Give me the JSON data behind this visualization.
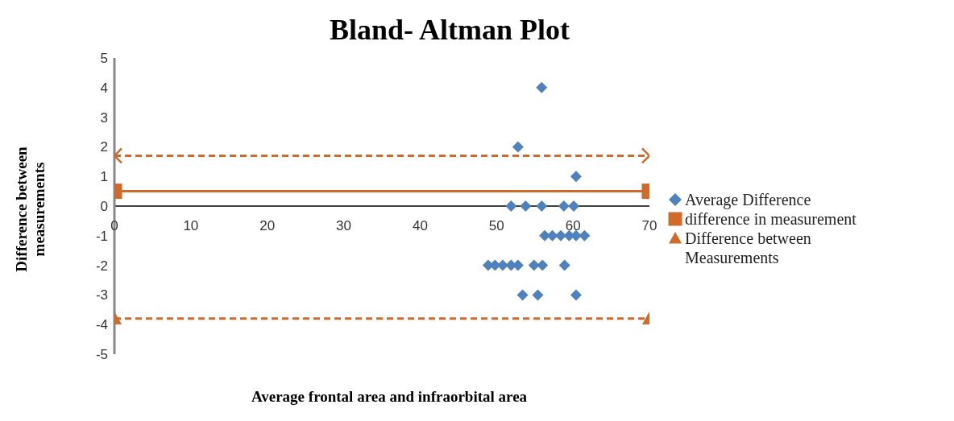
{
  "chart_data": {
    "type": "scatter",
    "title": "Bland- Altman Plot",
    "xlabel": "Average frontal area and infraorbital area",
    "ylabel": "Difference between measurements",
    "xlim": [
      0,
      70
    ],
    "xticks": [
      0,
      10,
      20,
      30,
      40,
      50,
      60,
      70
    ],
    "ylim": [
      -5,
      5
    ],
    "yticks": [
      -5,
      -4,
      -3,
      -2,
      -1,
      0,
      1,
      2,
      3,
      4,
      5
    ],
    "legend": "right",
    "series": [
      {
        "name": "Average Difference",
        "marker": "diamond",
        "color": "#4f81bd",
        "x": [
          55.9,
          52.8,
          60.4,
          51.9,
          53.8,
          55.9,
          58.8,
          60.1,
          56.3,
          57.3,
          58.4,
          59.5,
          60.4,
          61.5,
          48.9,
          49.8,
          50.8,
          51.9,
          52.8,
          54.9,
          56.0,
          58.9,
          53.4,
          55.4,
          60.4
        ],
        "values": [
          4,
          2,
          1,
          0,
          0,
          0,
          0,
          0,
          -1,
          -1,
          -1,
          -1,
          -1,
          -1,
          -2,
          -2,
          -2,
          -2,
          -2,
          -2,
          -2,
          -2,
          -3,
          -3,
          -3
        ]
      },
      {
        "type": "line",
        "marker": "cross",
        "line_style": "dashed",
        "color": "#d06a2a",
        "x": [
          0,
          70
        ],
        "values": [
          1.7,
          1.7
        ]
      },
      {
        "name": "difference in measurement",
        "type": "line",
        "marker": "square",
        "line_style": "solid",
        "color": "#d06a2a",
        "x": [
          0,
          70
        ],
        "values": [
          0.5,
          0.5
        ]
      },
      {
        "name": "Difference between Measurements",
        "type": "line",
        "marker": "triangle",
        "line_style": "dashed",
        "color": "#d06a2a",
        "x": [
          0,
          70
        ],
        "values": [
          -3.8,
          -3.8
        ]
      }
    ]
  }
}
